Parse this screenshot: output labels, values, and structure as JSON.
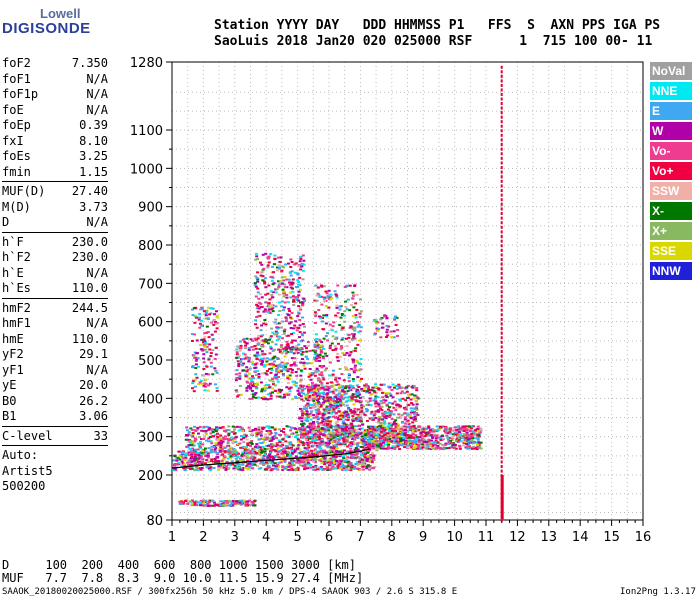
{
  "logo": {
    "line1": "Lowell",
    "line2": "DIGISONDE"
  },
  "header": {
    "line1": "Station YYYY DAY   DDD HHMMSS P1   FFS  S  AXN PPS IGA PS",
    "line2": "SaoLuis 2018 Jan20 020 025000 RSF      1  715 100 00- 11"
  },
  "params": {
    "g1": [
      [
        "foF2",
        "7.350"
      ],
      [
        "foF1",
        "N/A"
      ],
      [
        "foF1p",
        "N/A"
      ],
      [
        "foE",
        "N/A"
      ],
      [
        "foEp",
        "0.39"
      ],
      [
        "fxI",
        "8.10"
      ],
      [
        "foEs",
        "3.25"
      ],
      [
        "fmin",
        "1.15"
      ]
    ],
    "g2": [
      [
        "MUF(D)",
        "27.40"
      ],
      [
        "M(D)",
        "3.73"
      ],
      [
        "D",
        "N/A"
      ]
    ],
    "g3": [
      [
        "h`F",
        "230.0"
      ],
      [
        "h`F2",
        "230.0"
      ],
      [
        "h`E",
        "N/A"
      ],
      [
        "h`Es",
        "110.0"
      ]
    ],
    "g4": [
      [
        "hmF2",
        "244.5"
      ],
      [
        "hmF1",
        "N/A"
      ],
      [
        "hmE",
        "110.0"
      ],
      [
        "yF2",
        "29.1"
      ],
      [
        "yF1",
        "N/A"
      ],
      [
        "yE",
        "20.0"
      ],
      [
        "B0",
        "26.2"
      ],
      [
        "B1",
        "3.06"
      ]
    ],
    "g5": [
      [
        "C-level",
        "33"
      ]
    ],
    "auto": [
      "Auto:",
      "Artist5",
      "500200"
    ]
  },
  "legend": [
    {
      "label": "NoVal",
      "color": "#a0a0a0"
    },
    {
      "label": "NNE",
      "color": "#00e8f0"
    },
    {
      "label": "E",
      "color": "#40a8f0"
    },
    {
      "label": "W",
      "color": "#b000a8"
    },
    {
      "label": "Vo-",
      "color": "#f03c90"
    },
    {
      "label": "Vo+",
      "color": "#f00040"
    },
    {
      "label": "SSW",
      "color": "#f0b0a8"
    },
    {
      "label": "X-",
      "color": "#007800"
    },
    {
      "label": "X+",
      "color": "#88b860"
    },
    {
      "label": "SSE",
      "color": "#d8d800"
    },
    {
      "label": "NNW",
      "color": "#2020d8"
    }
  ],
  "footer": {
    "d_row": "D     100  200  400  600  800 1000 1500 3000 [km]",
    "muf_row": "MUF   7.7  7.8  8.3  9.0 10.0 11.5 15.9 27.4 [MHz]",
    "file": "SAAOK_20180020025000.RSF / 300fx256h 50 kHz 5.0 km / DPS-4 SAAOK 903 / 2.6 S 315.8 E",
    "version": "Ion2Png 1.3.17"
  },
  "chart_data": {
    "type": "scatter",
    "title": "",
    "xlabel": "",
    "ylabel": "",
    "xlim": [
      1,
      16
    ],
    "ylim": [
      80,
      1280
    ],
    "xticks": [
      1,
      2,
      3,
      4,
      5,
      6,
      7,
      8,
      9,
      10,
      11,
      12,
      13,
      14,
      15,
      16
    ],
    "yticks": [
      80,
      200,
      300,
      400,
      500,
      600,
      700,
      800,
      900,
      1000,
      1100,
      1280
    ],
    "trace": {
      "x": [
        1.0,
        1.5,
        2.0,
        2.5,
        3.0,
        3.5,
        4.0,
        4.5,
        5.0,
        5.5,
        6.0,
        6.5,
        7.0,
        7.3
      ],
      "y": [
        218,
        222,
        226,
        229,
        232,
        235,
        238,
        241,
        244,
        247,
        251,
        255,
        262,
        268
      ]
    },
    "spike": {
      "x": 11.5,
      "y_top": 1280,
      "y_bottom": 82
    },
    "clusters": [
      {
        "x0": 1.0,
        "x1": 7.4,
        "y0": 215,
        "y1": 265,
        "n": 900
      },
      {
        "x0": 1.4,
        "x1": 7.5,
        "y0": 260,
        "y1": 330,
        "n": 700
      },
      {
        "x0": 5.0,
        "x1": 8.8,
        "y0": 280,
        "y1": 440,
        "n": 900
      },
      {
        "x0": 7.2,
        "x1": 10.8,
        "y0": 270,
        "y1": 330,
        "n": 700
      },
      {
        "x0": 3.0,
        "x1": 5.8,
        "y0": 400,
        "y1": 560,
        "n": 500
      },
      {
        "x0": 3.6,
        "x1": 5.2,
        "y0": 560,
        "y1": 780,
        "n": 300
      },
      {
        "x0": 1.6,
        "x1": 2.4,
        "y0": 420,
        "y1": 640,
        "n": 150
      },
      {
        "x0": 5.5,
        "x1": 7.0,
        "y0": 300,
        "y1": 700,
        "n": 400
      },
      {
        "x0": 1.2,
        "x1": 3.6,
        "y0": 120,
        "y1": 135,
        "n": 150
      },
      {
        "x0": 7.4,
        "x1": 8.2,
        "y0": 560,
        "y1": 620,
        "n": 40
      }
    ]
  }
}
